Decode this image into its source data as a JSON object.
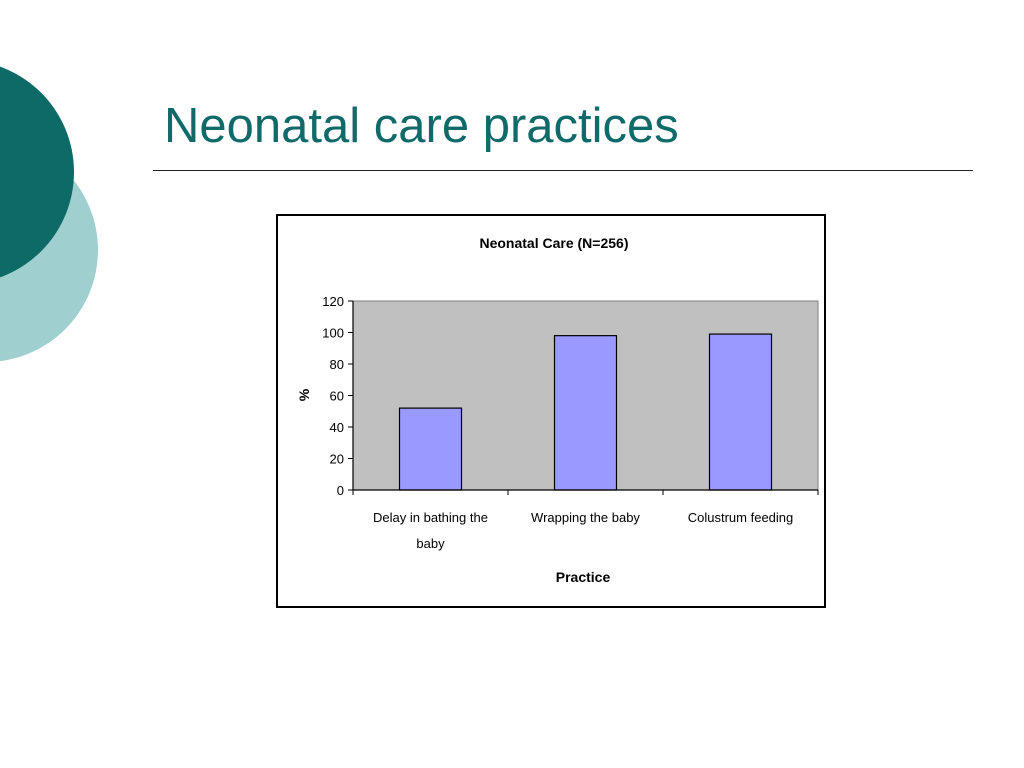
{
  "slide": {
    "title": "Neonatal care practices",
    "colors": {
      "title": "#106a6a",
      "circle_dark": "#0d6a66",
      "circle_light": "#9fcfcf"
    }
  },
  "chart_data": {
    "type": "bar",
    "title": "Neonatal Care (N=256)",
    "xlabel": "Practice",
    "ylabel": "%",
    "categories": [
      "Delay in bathing the baby",
      "Wrapping the baby",
      "Colustrum feeding"
    ],
    "values": [
      52,
      98,
      99
    ],
    "ylim": [
      0,
      120
    ],
    "yticks": [
      "0",
      "20",
      "40",
      "60",
      "80",
      "100",
      "120"
    ],
    "grid": false,
    "legend": "none",
    "colors": {
      "bar_fill": "#9999ff",
      "plot_background": "#c0c0c0"
    }
  }
}
